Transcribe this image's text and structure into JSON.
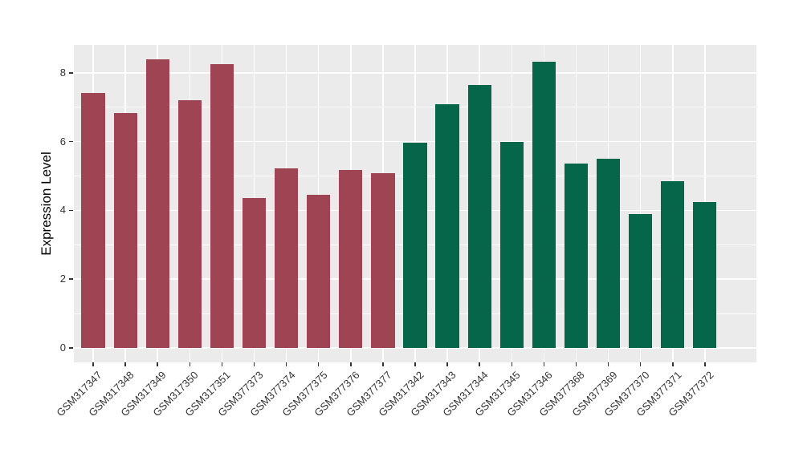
{
  "figure": {
    "background": "#FFFFFF",
    "panel_background": "#EBEBEB",
    "grid_color": "#FFFFFF",
    "axis_text_color": "#333333",
    "red_group_color": "#9E4452",
    "green_group_color": "#066649"
  },
  "chart_data": {
    "type": "bar",
    "title": "",
    "xlabel": "",
    "ylabel": "Expression Level",
    "legend": "none",
    "grid": true,
    "categories": [
      "GSM317347",
      "GSM317348",
      "GSM317349",
      "GSM317350",
      "GSM317351",
      "GSM377373",
      "GSM377374",
      "GSM377375",
      "GSM377376",
      "GSM377377",
      "GSM317342",
      "GSM317343",
      "GSM317344",
      "GSM317345",
      "GSM317346",
      "GSM377368",
      "GSM377369",
      "GSM377370",
      "GSM377371",
      "GSM377372"
    ],
    "values": [
      7.4,
      6.84,
      8.38,
      7.2,
      8.25,
      4.35,
      5.22,
      4.44,
      5.17,
      5.09,
      5.97,
      7.09,
      7.65,
      6.0,
      8.33,
      5.36,
      5.5,
      3.89,
      4.85,
      4.23
    ],
    "bar_colors": [
      "#9E4452",
      "#9E4452",
      "#9E4452",
      "#9E4452",
      "#9E4452",
      "#9E4452",
      "#9E4452",
      "#9E4452",
      "#9E4452",
      "#9E4452",
      "#066649",
      "#066649",
      "#066649",
      "#066649",
      "#066649",
      "#066649",
      "#066649",
      "#066649",
      "#066649",
      "#066649"
    ],
    "y_ticks": [
      0,
      2,
      4,
      6,
      8
    ],
    "y_minor_ticks": [
      1,
      3,
      5,
      7
    ],
    "ylim": [
      -0.42,
      8.81
    ]
  }
}
